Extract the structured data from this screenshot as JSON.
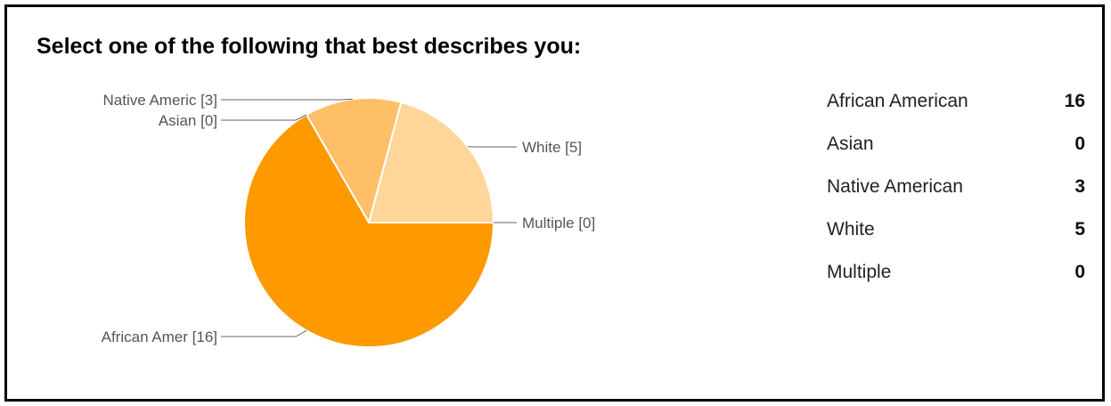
{
  "title": "Select one of the following that best describes you:",
  "colors": {
    "African American": "#ff9900",
    "Asian": "#ffa826",
    "Native American": "#ffbf66",
    "White": "#ffd699",
    "Multiple": "#ffe6c0",
    "leader_line": "#666666",
    "label_text": "#555555"
  },
  "chart_data": {
    "type": "pie",
    "title": "Select one of the following that best describes you:",
    "categories": [
      "African American",
      "Asian",
      "Native American",
      "White",
      "Multiple"
    ],
    "values": [
      16,
      0,
      3,
      5,
      0
    ],
    "slice_labels": [
      "African Amer [16]",
      "Asian [0]",
      "Native Americ [3]",
      "White [5]",
      "Multiple [0]"
    ],
    "legend": "table-right"
  },
  "table": {
    "rows": [
      {
        "label": "African American",
        "count": "16"
      },
      {
        "label": "Asian",
        "count": "0"
      },
      {
        "label": "Native American",
        "count": "3"
      },
      {
        "label": "White",
        "count": "5"
      },
      {
        "label": "Multiple",
        "count": "0"
      }
    ]
  }
}
